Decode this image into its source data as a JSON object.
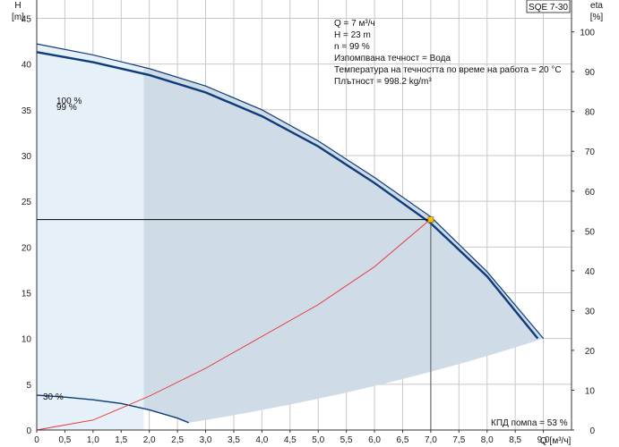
{
  "chart_data": {
    "type": "line",
    "title": "SQE 7-30",
    "xlabel": "Q [м³/ч]",
    "ylabel_left": "H",
    "ylabel_left_unit": "[m]",
    "ylabel_right": "eta",
    "ylabel_right_unit": "[%]",
    "xlim": [
      0,
      9.5
    ],
    "ylim_left": [
      0,
      47
    ],
    "ylim_right": [
      0,
      108
    ],
    "x_ticks": [
      "0",
      "0,5",
      "1,0",
      "1,5",
      "2,0",
      "2,5",
      "3,0",
      "3,5",
      "4,0",
      "4,5",
      "5,0",
      "5,5",
      "6,0",
      "6,5",
      "7,0",
      "7,5",
      "8,0",
      "8,5",
      "9,0"
    ],
    "x_tick_values": [
      0,
      0.5,
      1,
      1.5,
      2,
      2.5,
      3,
      3.5,
      4,
      4.5,
      5,
      5.5,
      6,
      6.5,
      7,
      7.5,
      8,
      8.5,
      9
    ],
    "y_left_ticks": [
      0,
      5,
      10,
      15,
      20,
      25,
      30,
      35,
      40,
      45
    ],
    "y_right_ticks": [
      0,
      10,
      20,
      30,
      40,
      50,
      60,
      70,
      80,
      90,
      100
    ],
    "grid": true,
    "series": [
      {
        "name": "100 %",
        "axis": "left",
        "color": "#0d3c7a",
        "x": [
          0,
          1,
          2,
          3,
          4,
          5,
          6,
          7,
          8,
          9
        ],
        "y": [
          42.2,
          41.0,
          39.5,
          37.6,
          35.0,
          31.6,
          27.6,
          23.3,
          17.3,
          10.0
        ]
      },
      {
        "name": "99 %",
        "axis": "left",
        "color": "#0d3c7a",
        "x": [
          0,
          1,
          2,
          3,
          4,
          5,
          6,
          7,
          8,
          8.9
        ],
        "y": [
          41.3,
          40.2,
          38.8,
          36.9,
          34.3,
          31.0,
          27.0,
          22.6,
          16.8,
          10.0
        ]
      },
      {
        "name": "30 %",
        "axis": "left",
        "color": "#0d3c7a",
        "x": [
          0,
          0.5,
          1,
          1.5,
          2,
          2.5,
          2.7
        ],
        "y": [
          3.8,
          3.6,
          3.3,
          2.9,
          2.2,
          1.3,
          0.8
        ]
      },
      {
        "name": "КПД помпа",
        "axis": "right",
        "color": "#e8312a",
        "x": [
          0,
          1,
          2,
          3,
          4,
          5,
          6,
          7
        ],
        "y": [
          0,
          2.5,
          8.5,
          15.5,
          23.5,
          31.5,
          41,
          53
        ]
      }
    ],
    "operating_point": {
      "x": 7,
      "y": 23
    },
    "info": [
      "Q = 7 м³/ч",
      "H = 23 m",
      "n = 99 %",
      "Изпомпвана течност = Вода",
      "Температура на течността по време на работа = 20 °C",
      "Плътност = 998.2 kg/m³"
    ],
    "efficiency_label": "КПД помпа = 53 %",
    "curve_labels": {
      "full": "100 %",
      "current": "99 %",
      "min": "30 %"
    },
    "colors": {
      "region_light": "#e6f0f9",
      "region_dark": "#cfdbe7",
      "curve": "#0d3c7a",
      "efficiency": "#e8312a",
      "point": "#f5c400",
      "grid": "#c8c8c8"
    }
  }
}
